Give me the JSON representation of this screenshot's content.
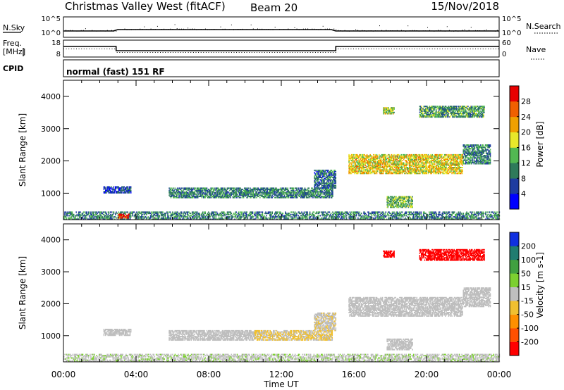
{
  "header": {
    "station": "Christmas Valley West (fitACF)",
    "beam": "Beam 20",
    "date": "15/Nov/2018"
  },
  "strip1": {
    "left_label": "N.Sky",
    "right_label": "N.Search",
    "left_ticks": [
      "10^5",
      "10^0"
    ],
    "right_ticks": [
      "10^5",
      "10^0"
    ]
  },
  "strip2": {
    "left_label_line1": "Freq.",
    "left_label_line2": "[MHz]",
    "right_label": "Nave",
    "left_ticks": [
      "18",
      "8"
    ],
    "right_ticks": [
      "60",
      "0"
    ],
    "freq_series": [
      {
        "t": 0,
        "v": 14
      },
      {
        "t": 2.9,
        "v": 14
      },
      {
        "t": 2.9,
        "v": 10
      },
      {
        "t": 15.0,
        "v": 10
      },
      {
        "t": 15.0,
        "v": 14
      },
      {
        "t": 24,
        "v": 14
      }
    ]
  },
  "cpid": {
    "label": "CPID",
    "value": "normal (fast) 151 RF"
  },
  "time_axis": {
    "label": "Time UT",
    "ticks": [
      "00:00",
      "04:00",
      "08:00",
      "12:00",
      "16:00",
      "20:00",
      "00:00"
    ],
    "range_hours": [
      0,
      24
    ]
  },
  "chart_data": [
    {
      "type": "heatmap",
      "quantity": "Power",
      "ylabel": "Slant Range [km]",
      "ylim": [
        180,
        4500
      ],
      "yticks": [
        "1000",
        "2000",
        "3000",
        "4000"
      ],
      "colorbar_label": "Power [dB]",
      "colorbar_ticks": [
        "4",
        "8",
        "12",
        "16",
        "20",
        "24",
        "28"
      ],
      "colorbar_range": [
        0,
        32
      ],
      "colors": [
        "#0000ff",
        "#1e3ca0",
        "#2e7a5a",
        "#52b852",
        "#e8e82a",
        "#f0a000",
        "#f06000",
        "#e80000"
      ],
      "echo_regions": [
        {
          "t": [
            0.0,
            24.0
          ],
          "r": [
            180,
            420
          ],
          "level": 10
        },
        {
          "t": [
            3.0,
            3.6
          ],
          "r": [
            220,
            340
          ],
          "level": 28
        },
        {
          "t": [
            2.2,
            3.7
          ],
          "r": [
            1000,
            1200
          ],
          "level": 6
        },
        {
          "t": [
            5.8,
            14.8
          ],
          "r": [
            850,
            1150
          ],
          "level": 10
        },
        {
          "t": [
            13.8,
            15.0
          ],
          "r": [
            1150,
            1700
          ],
          "level": 9
        },
        {
          "t": [
            15.7,
            22.0
          ],
          "r": [
            1600,
            2200
          ],
          "level": 19
        },
        {
          "t": [
            17.8,
            19.2
          ],
          "r": [
            550,
            900
          ],
          "level": 14
        },
        {
          "t": [
            19.6,
            23.2
          ],
          "r": [
            3350,
            3700
          ],
          "level": 12
        },
        {
          "t": [
            22.0,
            23.5
          ],
          "r": [
            1900,
            2500
          ],
          "level": 10
        },
        {
          "t": [
            17.6,
            18.2
          ],
          "r": [
            3450,
            3650
          ],
          "level": 16
        }
      ]
    },
    {
      "type": "heatmap",
      "quantity": "Velocity",
      "ylabel": "Slant Range [km]",
      "ylim": [
        180,
        4500
      ],
      "yticks": [
        "1000",
        "2000",
        "3000",
        "4000"
      ],
      "colorbar_label": "Velocity [m s-1]",
      "colorbar_ticks": [
        "200",
        "100",
        "50",
        "15",
        "-15",
        "-50",
        "-100",
        "-200"
      ],
      "colorbar_range": [
        -250,
        250
      ],
      "colors": [
        "#ff0000",
        "#ff5000",
        "#ff9000",
        "#f0c030",
        "#bebebe",
        "#7cd030",
        "#40a040",
        "#207c70",
        "#1030e0"
      ],
      "echo_regions": [
        {
          "t": [
            0.0,
            24.0
          ],
          "r": [
            180,
            420
          ],
          "level": 20
        },
        {
          "t": [
            2.2,
            3.7
          ],
          "r": [
            1000,
            1200
          ],
          "level": 0
        },
        {
          "t": [
            5.8,
            10.5
          ],
          "r": [
            850,
            1150
          ],
          "level": 0
        },
        {
          "t": [
            10.5,
            14.8
          ],
          "r": [
            850,
            1150
          ],
          "level": -30
        },
        {
          "t": [
            13.8,
            15.0
          ],
          "r": [
            1150,
            1700
          ],
          "level": -20
        },
        {
          "t": [
            15.7,
            22.0
          ],
          "r": [
            1600,
            2200
          ],
          "level": 0
        },
        {
          "t": [
            17.8,
            19.2
          ],
          "r": [
            550,
            900
          ],
          "level": 0
        },
        {
          "t": [
            19.6,
            23.2
          ],
          "r": [
            3350,
            3700
          ],
          "level": -220
        },
        {
          "t": [
            22.0,
            23.5
          ],
          "r": [
            1900,
            2500
          ],
          "level": 0
        },
        {
          "t": [
            17.6,
            18.2
          ],
          "r": [
            3450,
            3650
          ],
          "level": -220
        }
      ]
    }
  ]
}
